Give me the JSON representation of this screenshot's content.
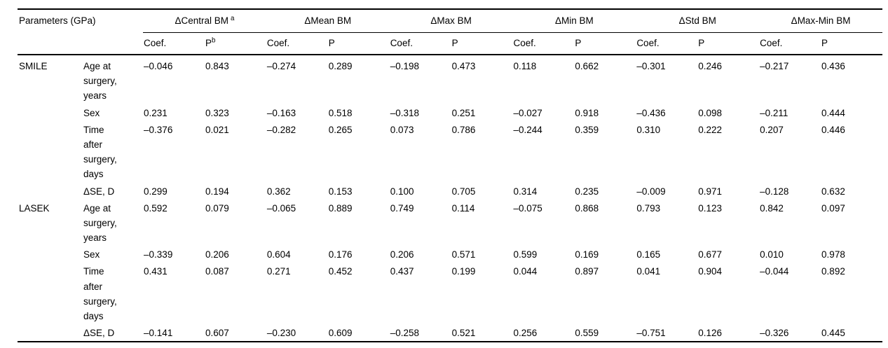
{
  "table": {
    "header": {
      "param": "Parameters (GPa)",
      "groups": [
        {
          "label": "ΔCentral BM",
          "sup": "a"
        },
        {
          "label": "ΔMean BM"
        },
        {
          "label": "ΔMax BM"
        },
        {
          "label": "ΔMin BM"
        },
        {
          "label": "ΔStd BM"
        },
        {
          "label": "ΔMax-Min BM"
        }
      ],
      "sub": [
        {
          "label": "Coef."
        },
        {
          "label": "P",
          "sup": "b"
        },
        {
          "label": "Coef."
        },
        {
          "label": "P"
        },
        {
          "label": "Coef."
        },
        {
          "label": "P"
        },
        {
          "label": "Coef."
        },
        {
          "label": "P"
        },
        {
          "label": "Coef."
        },
        {
          "label": "P"
        },
        {
          "label": "Coef."
        },
        {
          "label": "P"
        }
      ]
    },
    "rows": [
      {
        "group": "SMILE",
        "parameter": "Age at\nsurgery,\nyears",
        "values": [
          "–0.046",
          "0.843",
          "–0.274",
          "0.289",
          "–0.198",
          "0.473",
          "0.118",
          "0.662",
          "–0.301",
          "0.246",
          "–0.217",
          "0.436"
        ]
      },
      {
        "group": "",
        "parameter": "Sex",
        "values": [
          "0.231",
          "0.323",
          "–0.163",
          "0.518",
          "–0.318",
          "0.251",
          "–0.027",
          "0.918",
          "–0.436",
          "0.098",
          "–0.211",
          "0.444"
        ]
      },
      {
        "group": "",
        "parameter": "Time\nafter\nsurgery,\ndays",
        "values": [
          "–0.376",
          "0.021",
          "–0.282",
          "0.265",
          "0.073",
          "0.786",
          "–0.244",
          "0.359",
          "0.310",
          "0.222",
          "0.207",
          "0.446"
        ]
      },
      {
        "group": "",
        "parameter": "ΔSE, D",
        "values": [
          "0.299",
          "0.194",
          "0.362",
          "0.153",
          "0.100",
          "0.705",
          "0.314",
          "0.235",
          "–0.009",
          "0.971",
          "–0.128",
          "0.632"
        ]
      },
      {
        "group": "LASEK",
        "parameter": "Age at\nsurgery,\nyears",
        "values": [
          "0.592",
          "0.079",
          "–0.065",
          "0.889",
          "0.749",
          "0.114",
          "–0.075",
          "0.868",
          "0.793",
          "0.123",
          "0.842",
          "0.097"
        ]
      },
      {
        "group": "",
        "parameter": "Sex",
        "values": [
          "–0.339",
          "0.206",
          "0.604",
          "0.176",
          "0.206",
          "0.571",
          "0.599",
          "0.169",
          "0.165",
          "0.677",
          "0.010",
          "0.978"
        ]
      },
      {
        "group": "",
        "parameter": "Time\nafter\nsurgery,\ndays",
        "values": [
          "0.431",
          "0.087",
          "0.271",
          "0.452",
          "0.437",
          "0.199",
          "0.044",
          "0.897",
          "0.041",
          "0.904",
          "–0.044",
          "0.892"
        ]
      },
      {
        "group": "",
        "parameter": "ΔSE, D",
        "values": [
          "–0.141",
          "0.607",
          "–0.230",
          "0.609",
          "–0.258",
          "0.521",
          "0.256",
          "0.559",
          "–0.751",
          "0.126",
          "–0.326",
          "0.445"
        ]
      }
    ]
  }
}
